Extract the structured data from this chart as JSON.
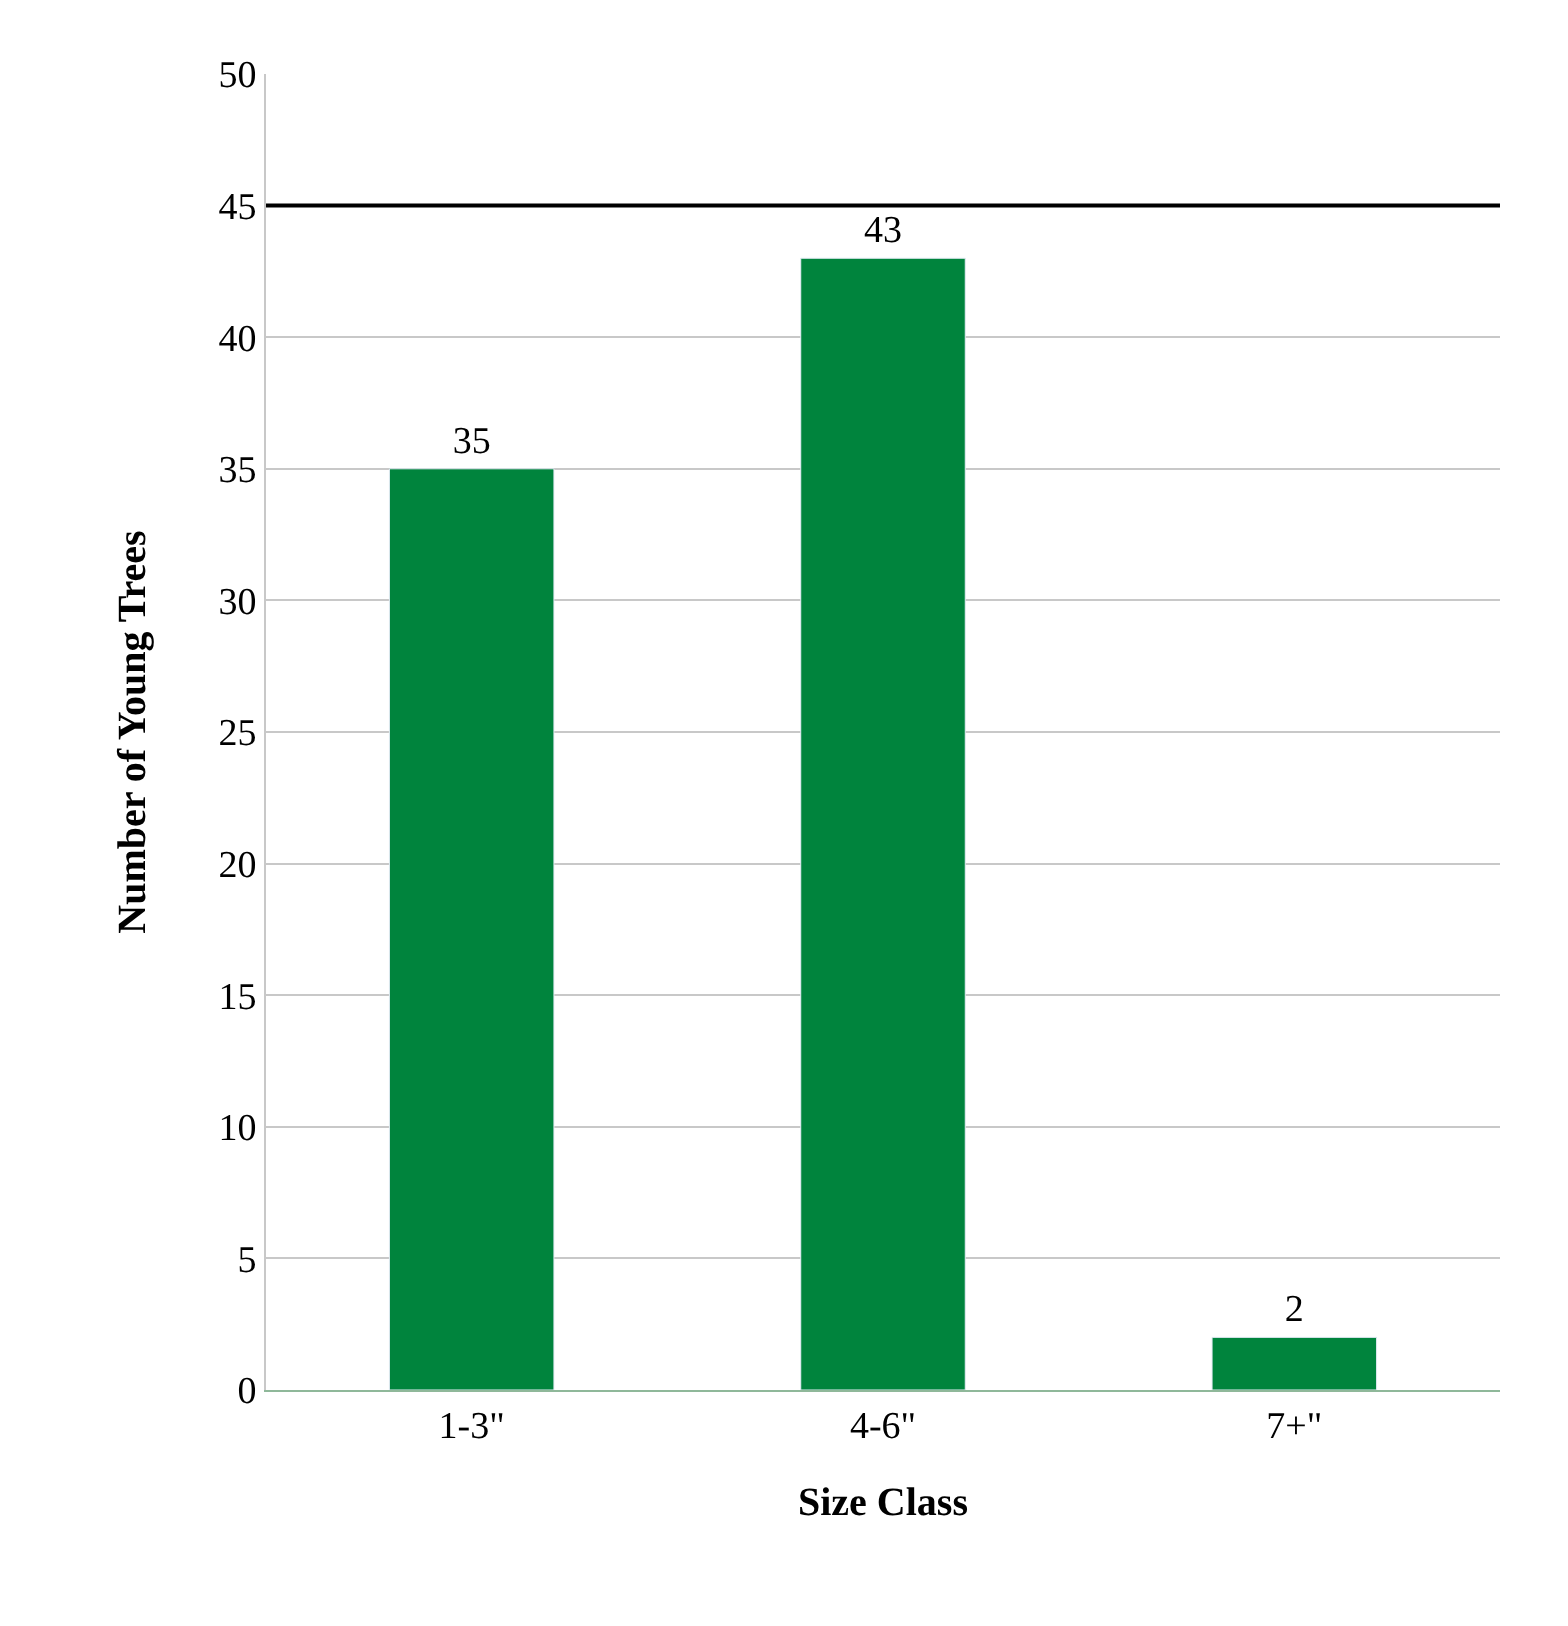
{
  "chart_data": {
    "type": "bar",
    "xlabel": "Size Class",
    "ylabel": "Number of Young Trees",
    "categories": [
      "1-3\"",
      "4-6\"",
      "7+\""
    ],
    "series": [
      {
        "color": "#00843d",
        "values": [
          35,
          43,
          2
        ]
      }
    ],
    "ylim": [
      0,
      50
    ],
    "yticks": [
      0,
      5,
      10,
      15,
      20,
      25,
      30,
      35,
      40,
      45,
      50
    ],
    "grid": "y",
    "data_labels": true,
    "legend": false,
    "ref_lines": [
      {
        "axis": "y",
        "value": 45,
        "color": "#000000",
        "line_style": "solid"
      }
    ]
  }
}
